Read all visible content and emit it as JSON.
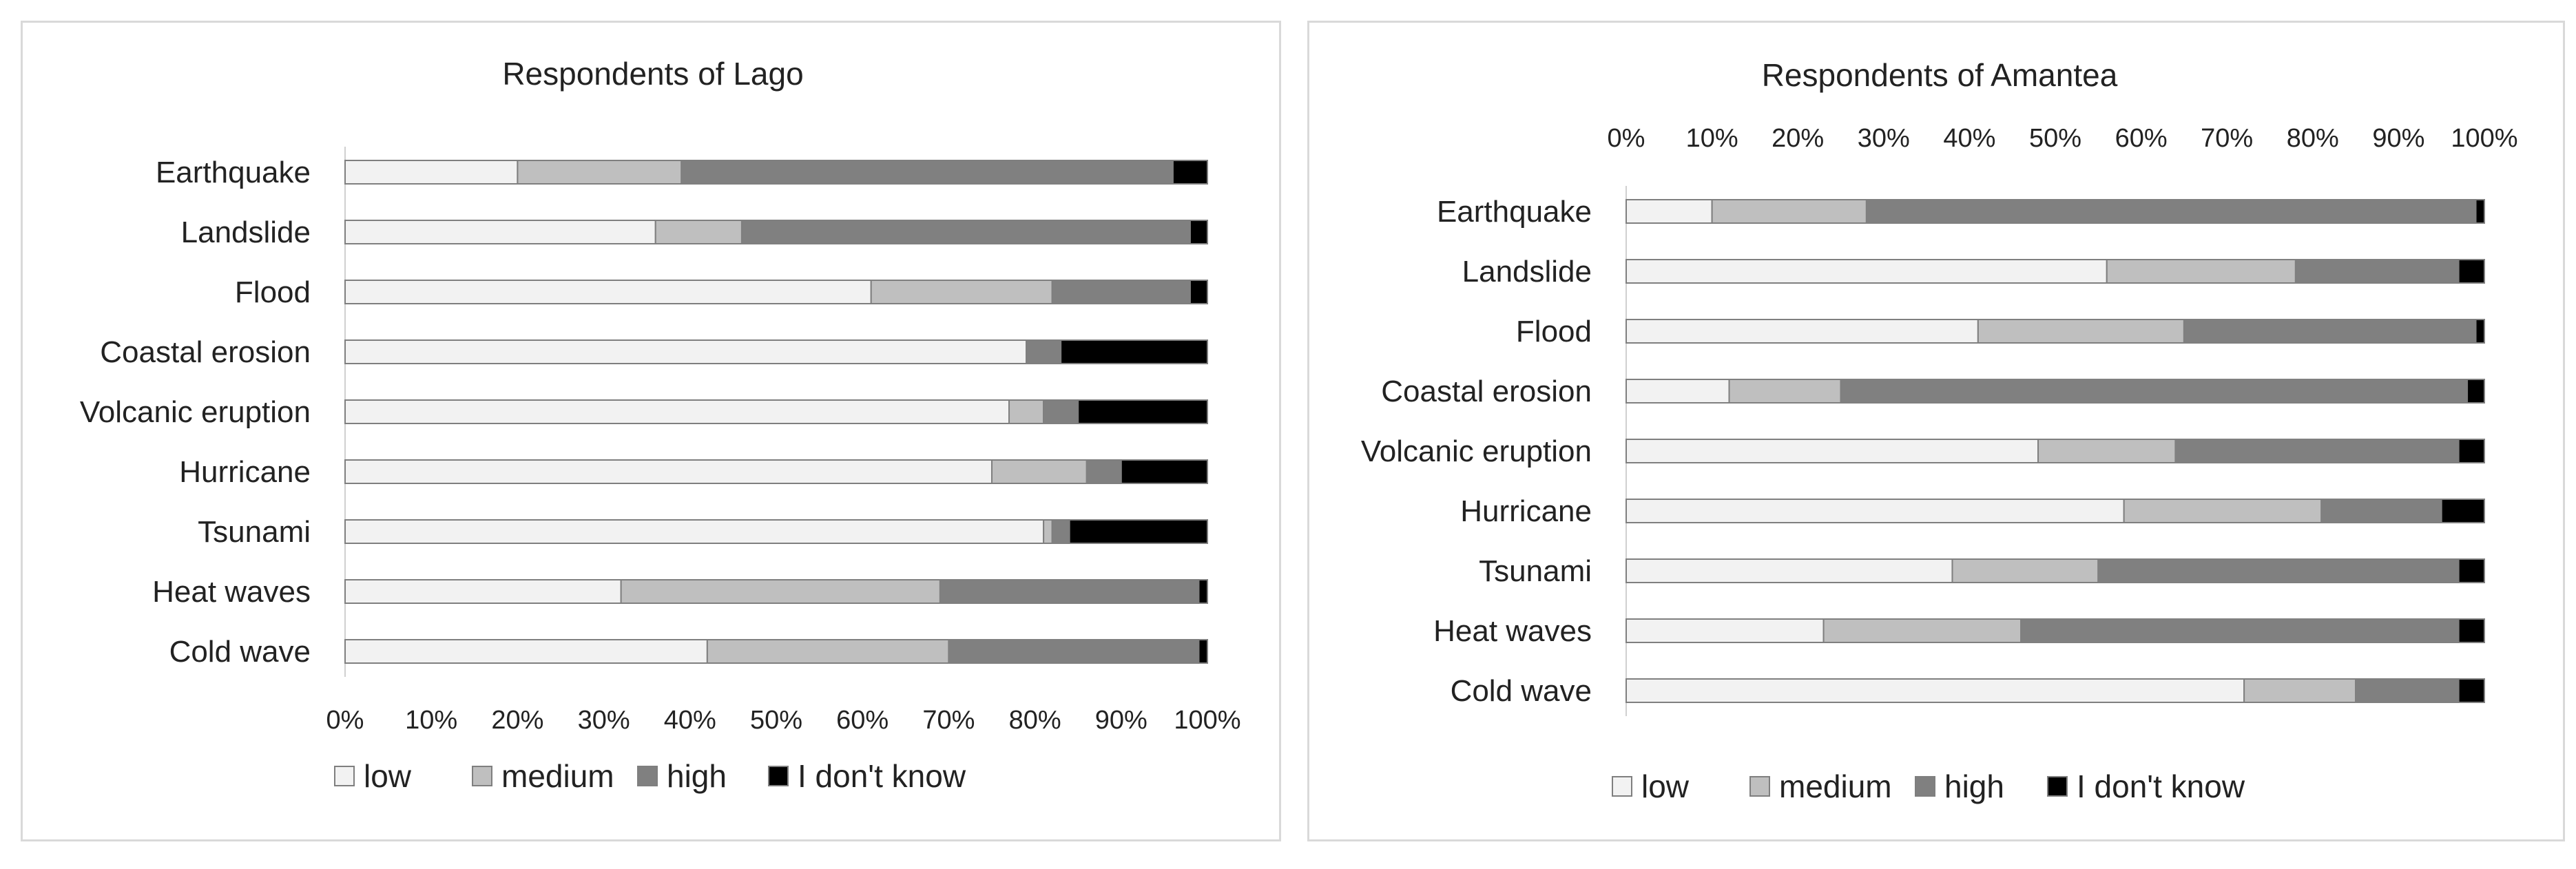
{
  "chart_data": [
    {
      "type": "bar",
      "orientation": "horizontal",
      "stacked": "percent",
      "title": "Respondents of Lago",
      "x_axis_position": "bottom",
      "xlim": [
        0,
        100
      ],
      "xtick_labels": [
        "0%",
        "10%",
        "20%",
        "30%",
        "40%",
        "50%",
        "60%",
        "70%",
        "80%",
        "90%",
        "100%"
      ],
      "categories": [
        "Earthquake",
        "Landslide",
        "Flood",
        "Coastal erosion",
        "Volcanic eruption",
        "Hurricane",
        "Tsunami",
        "Heat waves",
        "Cold wave"
      ],
      "series": [
        {
          "name": "low",
          "color": "#f2f2f2",
          "values": [
            20,
            36,
            61,
            79,
            77,
            75,
            81,
            32,
            42
          ]
        },
        {
          "name": "medium",
          "color": "#bfbfbf",
          "values": [
            19,
            10,
            21,
            0,
            4,
            11,
            1,
            37,
            28
          ]
        },
        {
          "name": "high",
          "color": "#808080",
          "values": [
            57,
            52,
            16,
            4,
            4,
            4,
            2,
            30,
            29
          ]
        },
        {
          "name": "I don't know",
          "color": "#000000",
          "values": [
            4,
            2,
            2,
            17,
            15,
            10,
            16,
            1,
            1
          ]
        }
      ],
      "legend": "bottom"
    },
    {
      "type": "bar",
      "orientation": "horizontal",
      "stacked": "percent",
      "title": "Respondents of Amantea",
      "x_axis_position": "top",
      "xlim": [
        0,
        100
      ],
      "xtick_labels": [
        "0%",
        "10%",
        "20%",
        "30%",
        "40%",
        "50%",
        "60%",
        "70%",
        "80%",
        "90%",
        "100%"
      ],
      "categories": [
        "Earthquake",
        "Landslide",
        "Flood",
        "Coastal erosion",
        "Volcanic eruption",
        "Hurricane",
        "Tsunami",
        "Heat waves",
        "Cold wave"
      ],
      "series": [
        {
          "name": "low",
          "color": "#f2f2f2",
          "values": [
            10,
            56,
            41,
            12,
            48,
            58,
            38,
            23,
            72
          ]
        },
        {
          "name": "medium",
          "color": "#bfbfbf",
          "values": [
            18,
            22,
            24,
            13,
            16,
            23,
            17,
            23,
            13
          ]
        },
        {
          "name": "high",
          "color": "#808080",
          "values": [
            71,
            19,
            34,
            73,
            33,
            14,
            42,
            51,
            12
          ]
        },
        {
          "name": "I don't know",
          "color": "#000000",
          "values": [
            1,
            3,
            1,
            2,
            3,
            5,
            3,
            3,
            3
          ]
        }
      ],
      "legend": "bottom"
    }
  ]
}
